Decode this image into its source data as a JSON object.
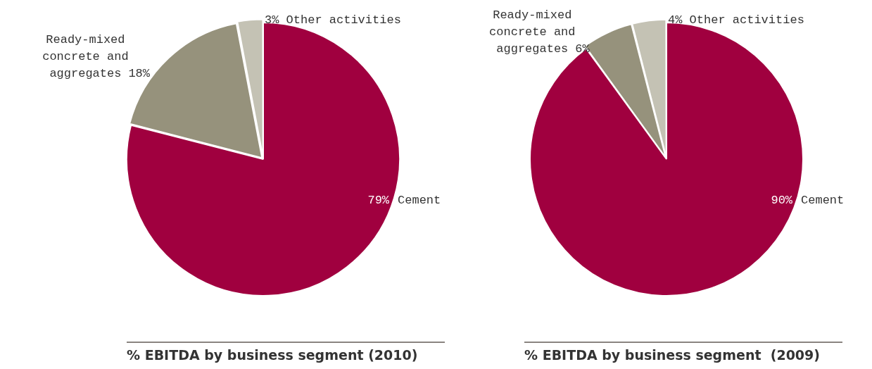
{
  "chart_data": [
    {
      "type": "pie",
      "title": "% EBITDA by business segment (2010)",
      "categories": [
        "Cement",
        "Ready-mixed concrete and aggregates",
        "Other activities"
      ],
      "values": [
        79,
        18,
        3
      ],
      "value_labels": [
        "79%",
        "18%",
        "3%"
      ],
      "colors": [
        "#a0003f",
        "#96927c",
        "#c4c2b4"
      ],
      "legend": false
    },
    {
      "type": "pie",
      "title": "% EBITDA by business segment  (2009)",
      "categories": [
        "Cement",
        "Ready-mixed concrete and aggregates",
        "Other activities"
      ],
      "values": [
        90,
        6,
        4
      ],
      "value_labels": [
        "90%",
        "6%",
        "4%"
      ],
      "colors": [
        "#a0003f",
        "#96927c",
        "#c4c2b4"
      ],
      "legend": false
    }
  ]
}
